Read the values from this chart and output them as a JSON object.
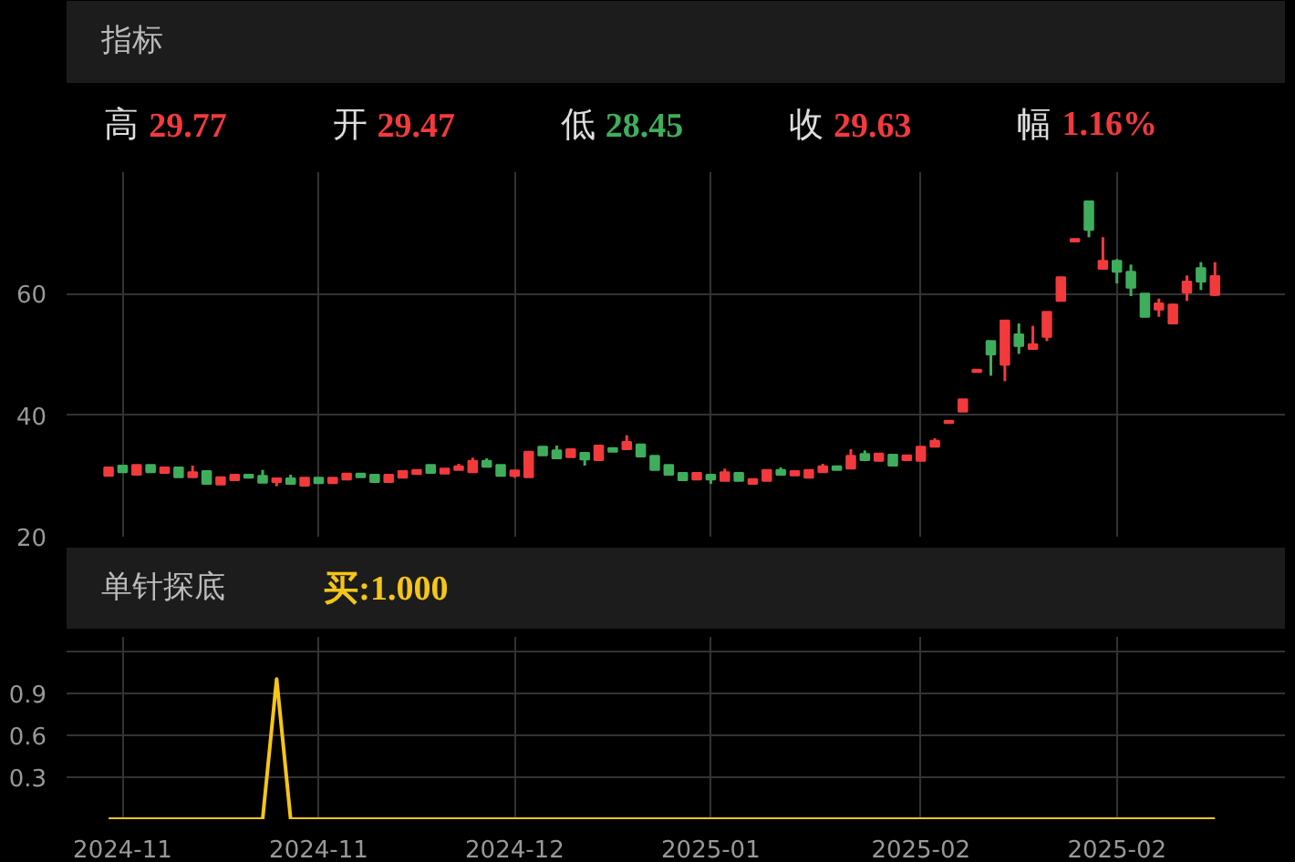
{
  "chart_data": [
    {
      "type": "candlestick",
      "title": "指标",
      "annotations": [
        "高",
        "29.77",
        "开",
        "29.47",
        "低",
        "28.45",
        "收",
        "29.63",
        "幅",
        "1.16%"
      ],
      "categories": [
        null,
        "2024-11",
        null,
        null,
        null,
        null,
        null,
        null,
        null,
        null,
        null,
        null,
        null,
        null,
        null,
        "2024-11",
        null,
        null,
        null,
        null,
        null,
        null,
        null,
        null,
        null,
        null,
        null,
        null,
        null,
        "2024-12",
        null,
        null,
        null,
        null,
        null,
        null,
        null,
        null,
        null,
        null,
        null,
        null,
        null,
        "2025-01",
        null,
        null,
        null,
        null,
        null,
        null,
        null,
        null,
        null,
        null,
        null,
        null,
        null,
        null,
        "2025-02",
        null,
        null,
        null,
        null,
        null,
        null,
        null,
        null,
        null,
        null,
        null,
        null,
        null,
        "2025-02",
        null,
        null,
        null,
        null,
        null,
        null,
        null
      ],
      "ohlc": [
        [
          30.0,
          31.4,
          30.0,
          31.4
        ],
        [
          31.7,
          31.7,
          30.6,
          30.6
        ],
        [
          30.2,
          31.8,
          30.2,
          31.8
        ],
        [
          31.8,
          31.8,
          30.6,
          30.6
        ],
        [
          30.5,
          31.4,
          30.5,
          31.4
        ],
        [
          31.4,
          31.4,
          29.8,
          29.8
        ],
        [
          29.8,
          31.7,
          29.8,
          30.6
        ],
        [
          30.8,
          30.8,
          28.7,
          28.7
        ],
        [
          28.6,
          29.8,
          28.6,
          29.8
        ],
        [
          29.3,
          30.2,
          29.3,
          30.2
        ],
        [
          30.2,
          30.2,
          29.7,
          29.7
        ],
        [
          30.0,
          31.0,
          28.9,
          28.9
        ],
        [
          29.0,
          29.6,
          28.3,
          29.6
        ],
        [
          29.6,
          30.2,
          28.7,
          28.7
        ],
        [
          28.4,
          29.7,
          28.4,
          29.7
        ],
        [
          29.7,
          29.7,
          28.8,
          28.8
        ],
        [
          28.8,
          29.7,
          28.8,
          29.7
        ],
        [
          29.4,
          30.4,
          29.4,
          30.4
        ],
        [
          30.4,
          30.4,
          29.8,
          29.8
        ],
        [
          30.2,
          30.2,
          29.0,
          29.0
        ],
        [
          29.0,
          30.2,
          29.0,
          30.2
        ],
        [
          29.7,
          30.8,
          29.7,
          30.8
        ],
        [
          30.3,
          31.0,
          30.3,
          31.0
        ],
        [
          31.8,
          31.8,
          30.5,
          30.5
        ],
        [
          30.4,
          31.2,
          30.4,
          31.2
        ],
        [
          31.0,
          32.0,
          31.0,
          31.6
        ],
        [
          30.6,
          33.0,
          30.6,
          32.5
        ],
        [
          32.5,
          32.9,
          31.5,
          31.5
        ],
        [
          31.8,
          31.8,
          30.0,
          30.0
        ],
        [
          30.0,
          30.9,
          29.7,
          30.9
        ],
        [
          29.8,
          34.0,
          29.8,
          34.0
        ],
        [
          34.8,
          34.8,
          33.4,
          33.4
        ],
        [
          34.2,
          35.0,
          32.9,
          32.9
        ],
        [
          33.1,
          34.4,
          33.1,
          34.4
        ],
        [
          33.8,
          33.8,
          31.7,
          32.7
        ],
        [
          32.6,
          35.0,
          32.6,
          35.0
        ],
        [
          34.6,
          34.6,
          34.0,
          34.0
        ],
        [
          34.4,
          36.7,
          34.4,
          35.6
        ],
        [
          35.2,
          35.2,
          33.2,
          33.2
        ],
        [
          33.3,
          33.3,
          31.0,
          31.0
        ],
        [
          31.8,
          31.8,
          30.2,
          30.2
        ],
        [
          30.5,
          30.5,
          29.3,
          29.3
        ],
        [
          29.4,
          30.5,
          29.4,
          30.5
        ],
        [
          30.2,
          30.2,
          28.7,
          29.4
        ],
        [
          29.2,
          31.2,
          29.2,
          30.6
        ],
        [
          30.5,
          30.5,
          29.2,
          29.2
        ],
        [
          28.7,
          29.5,
          28.7,
          29.5
        ],
        [
          29.2,
          31.0,
          29.2,
          31.0
        ],
        [
          31.0,
          31.4,
          30.2,
          30.2
        ],
        [
          30.1,
          30.8,
          30.1,
          30.8
        ],
        [
          29.7,
          31.0,
          29.7,
          31.0
        ],
        [
          30.6,
          32.0,
          30.6,
          31.6
        ],
        [
          31.6,
          31.6,
          31.0,
          31.0
        ],
        [
          31.2,
          34.4,
          31.2,
          33.3
        ],
        [
          33.6,
          34.2,
          32.6,
          32.6
        ],
        [
          32.5,
          33.7,
          32.5,
          33.7
        ],
        [
          33.5,
          33.5,
          31.7,
          31.7
        ],
        [
          32.6,
          33.4,
          32.6,
          33.4
        ],
        [
          32.5,
          34.8,
          32.5,
          34.8
        ],
        [
          34.8,
          36.2,
          34.8,
          35.8
        ],
        [
          38.7,
          39.1,
          38.7,
          39.1
        ],
        [
          40.6,
          42.6,
          40.6,
          42.6
        ],
        [
          47.1,
          47.5,
          47.1,
          47.5
        ],
        [
          52.2,
          52.2,
          46.5,
          50.0
        ],
        [
          48.3,
          55.6,
          45.6,
          55.6
        ],
        [
          53.3,
          55.1,
          50.1,
          51.4
        ],
        [
          50.9,
          54.7,
          50.9,
          51.7
        ],
        [
          52.9,
          57.0,
          52.2,
          57.0
        ],
        [
          58.8,
          62.7,
          58.8,
          62.7
        ],
        [
          68.6,
          69.0,
          68.6,
          69.0
        ],
        [
          75.2,
          75.2,
          69.3,
          70.5
        ],
        [
          64.1,
          69.3,
          64.1,
          65.4
        ],
        [
          65.4,
          65.7,
          61.7,
          63.6
        ],
        [
          63.6,
          64.8,
          59.6,
          61.0
        ],
        [
          60.0,
          60.0,
          56.2,
          56.2
        ],
        [
          57.4,
          59.2,
          56.2,
          58.4
        ],
        [
          55.1,
          58.4,
          55.1,
          58.2
        ],
        [
          60.2,
          63.0,
          58.8,
          62.0
        ],
        [
          64.2,
          65.2,
          60.6,
          62.0
        ],
        [
          59.8,
          65.2,
          59.6,
          62.9
        ]
      ],
      "ylim": [
        20,
        80
      ],
      "yticks": [
        20,
        40,
        60
      ],
      "grid": true,
      "tick_labels": "y"
    },
    {
      "type": "line",
      "title": "单针探底",
      "annotations": [
        "买:1.000"
      ],
      "categories": [
        null,
        "2024-11",
        null,
        null,
        null,
        null,
        null,
        null,
        null,
        null,
        null,
        null,
        null,
        null,
        null,
        "2024-11",
        null,
        null,
        null,
        null,
        null,
        null,
        null,
        null,
        null,
        null,
        null,
        null,
        null,
        "2024-12",
        null,
        null,
        null,
        null,
        null,
        null,
        null,
        null,
        null,
        null,
        null,
        null,
        null,
        "2025-01",
        null,
        null,
        null,
        null,
        null,
        null,
        null,
        null,
        null,
        null,
        null,
        null,
        null,
        null,
        "2025-02",
        null,
        null,
        null,
        null,
        null,
        null,
        null,
        null,
        null,
        null,
        null,
        null,
        null,
        "2025-02",
        null,
        null,
        null,
        null,
        null,
        null,
        null
      ],
      "series": [
        {
          "color": "#f5c518",
          "values": [
            0,
            0,
            0,
            0,
            0,
            0,
            0,
            0,
            0,
            0,
            0,
            0,
            1,
            0,
            0,
            0,
            0,
            0,
            0,
            0,
            0,
            0,
            0,
            0,
            0,
            0,
            0,
            0,
            0,
            0,
            0,
            0,
            0,
            0,
            0,
            0,
            0,
            0,
            0,
            0,
            0,
            0,
            0,
            0,
            0,
            0,
            0,
            0,
            0,
            0,
            0,
            0,
            0,
            0,
            0,
            0,
            0,
            0,
            0,
            0,
            0,
            0,
            0,
            0,
            0,
            0,
            0,
            0,
            0,
            0,
            0,
            0,
            0,
            0,
            0,
            0,
            0,
            0,
            0,
            0
          ]
        }
      ],
      "ylim": [
        0,
        1.3
      ],
      "yticks": [
        0.3,
        0.6,
        0.9,
        {
          "value": 1.2,
          "label": null
        }
      ],
      "grid": true
    }
  ]
}
